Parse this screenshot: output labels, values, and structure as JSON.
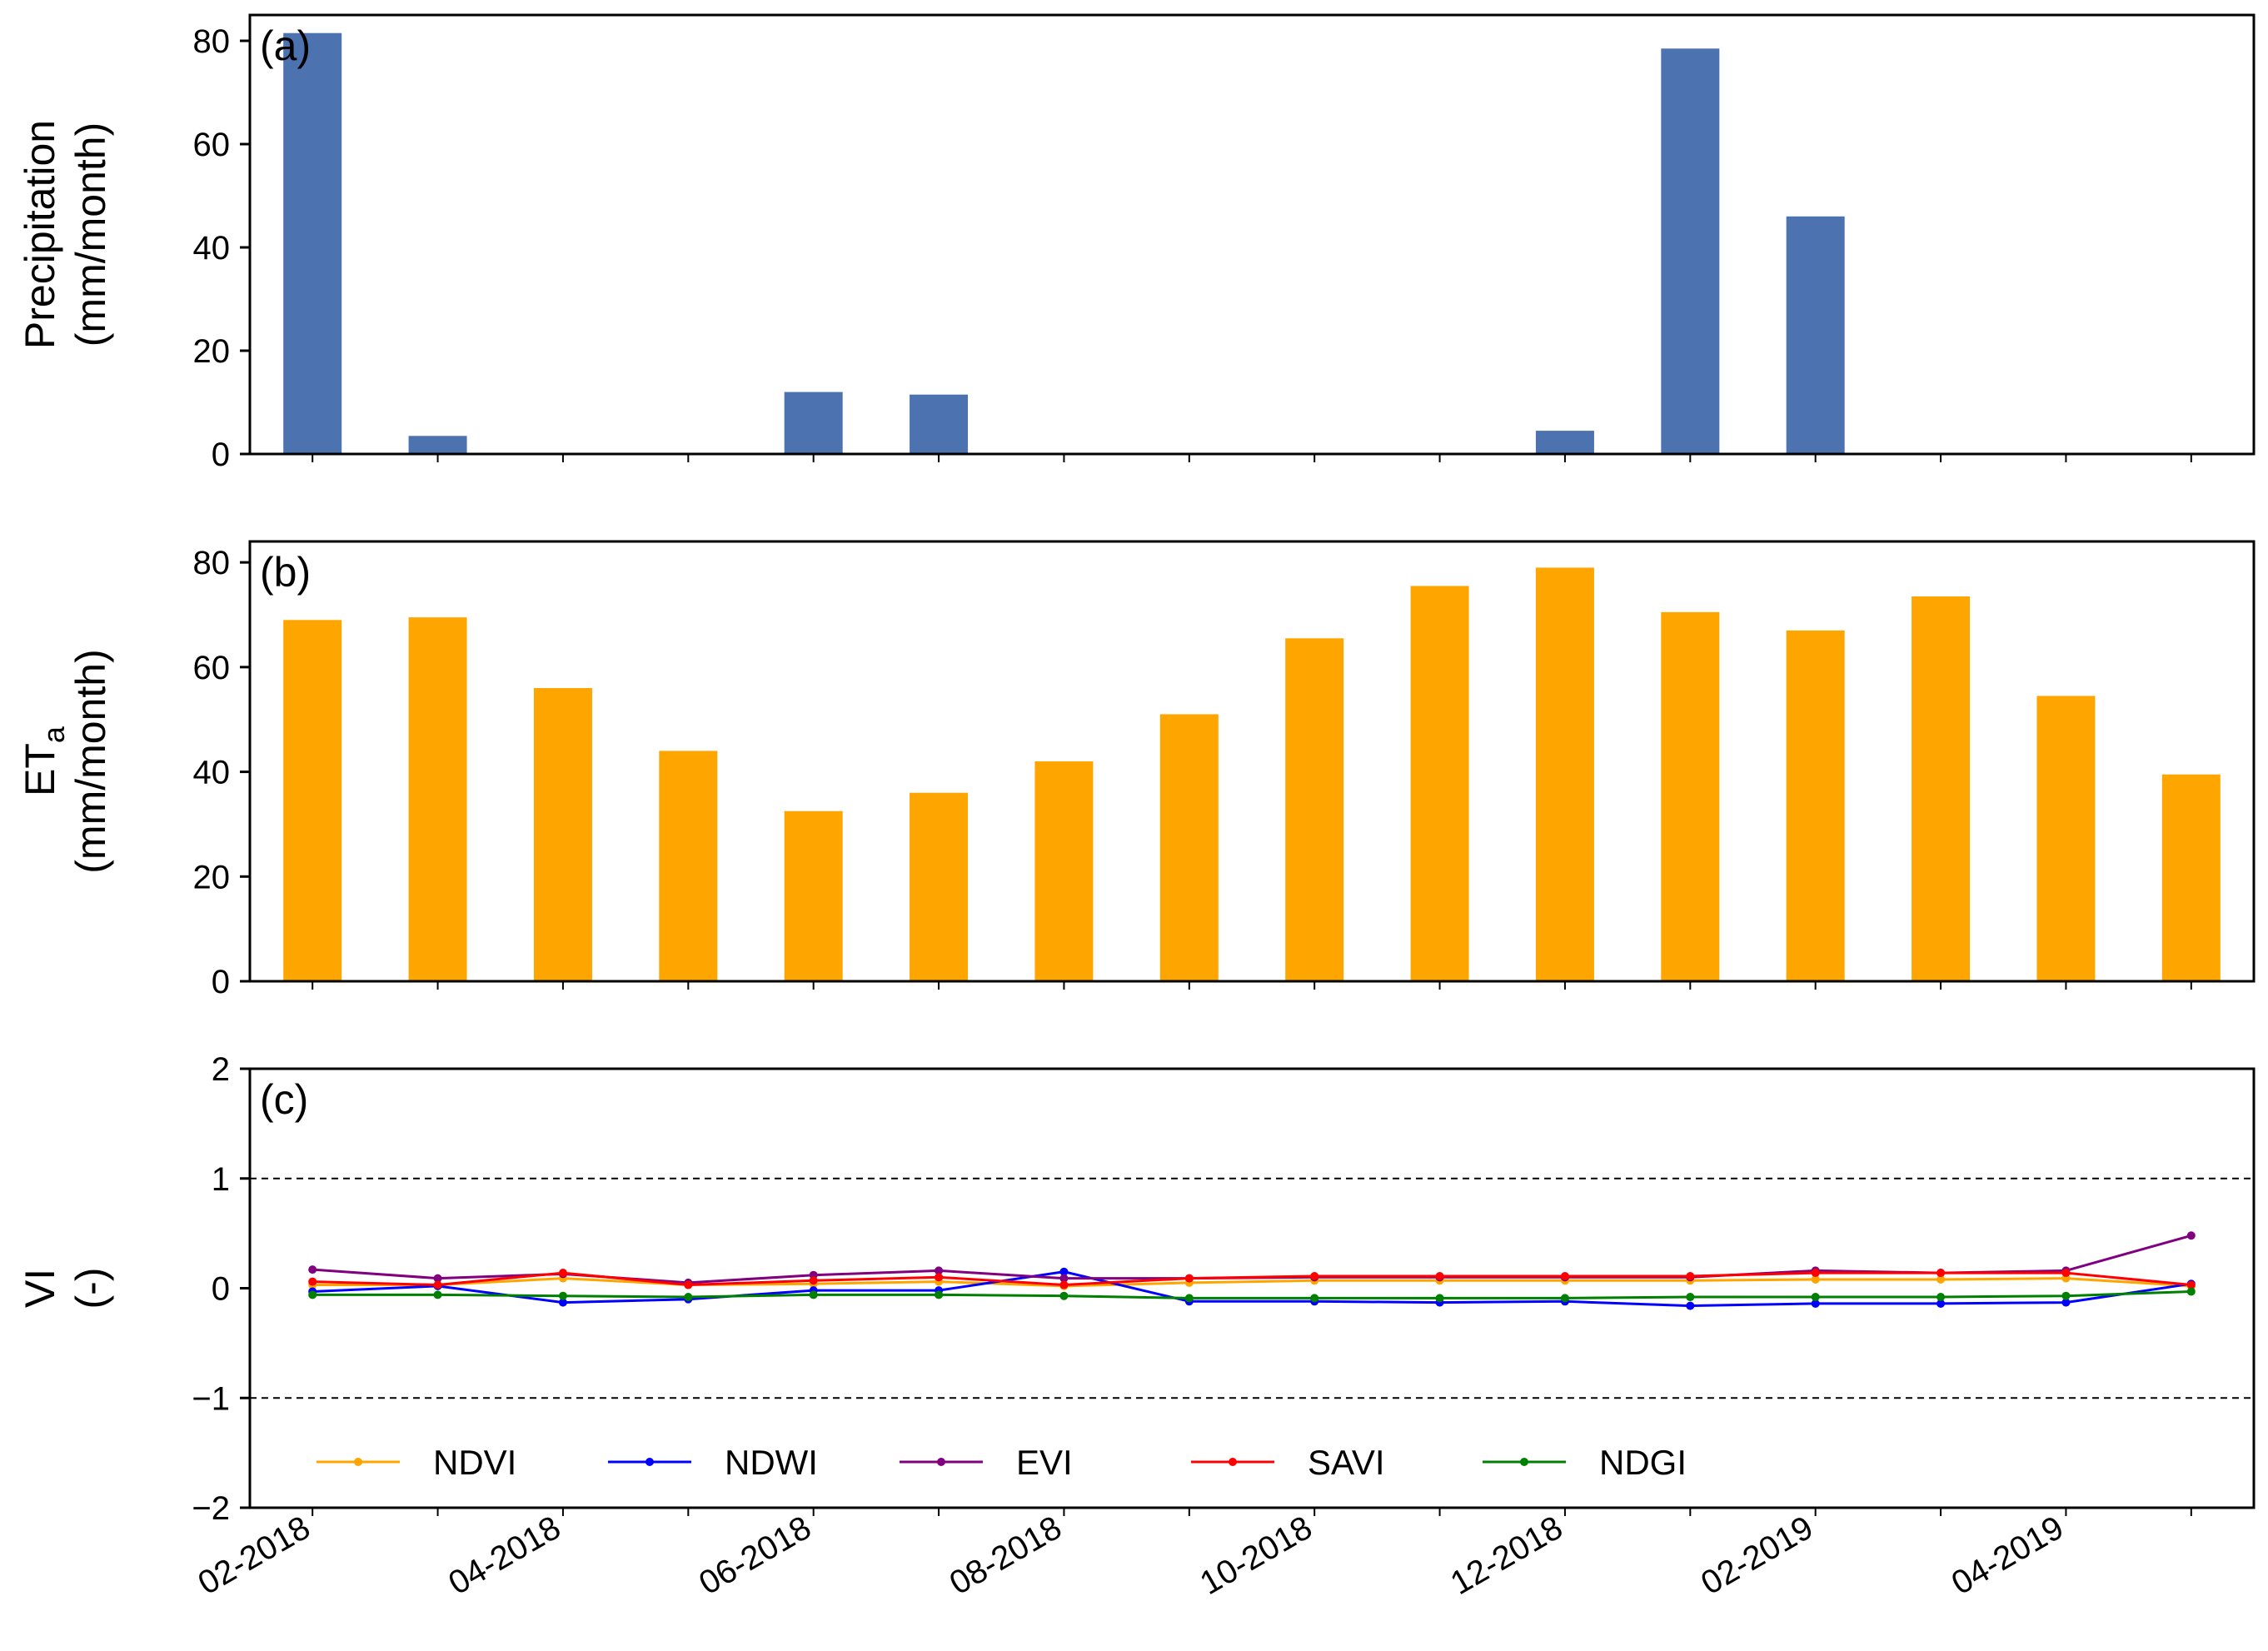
{
  "months": [
    "02-2018",
    "03-2018",
    "04-2018",
    "05-2018",
    "06-2018",
    "07-2018",
    "08-2018",
    "09-2018",
    "10-2018",
    "11-2018",
    "12-2018",
    "01-2019",
    "02-2019",
    "03-2019",
    "04-2019",
    "05-2019"
  ],
  "x_tick_labels": [
    "02-2018",
    "04-2018",
    "06-2018",
    "08-2018",
    "10-2018",
    "12-2018",
    "02-2019",
    "04-2019"
  ],
  "chart_data": [
    {
      "id": "a",
      "type": "bar",
      "panel_label": "(a)",
      "ylabel_line1": "Precipitation",
      "ylabel_line2": "(mm/month)",
      "ylim": [
        0,
        85
      ],
      "yticks": [
        0,
        20,
        40,
        60,
        80
      ],
      "color": "#4c72b0",
      "values": [
        81.5,
        3.5,
        0,
        0.2,
        12,
        11.5,
        0,
        0,
        0,
        0,
        4.5,
        78.5,
        46,
        0,
        0.2,
        0
      ]
    },
    {
      "id": "b",
      "type": "bar",
      "panel_label": "(b)",
      "ylabel_main": "ET",
      "ylabel_sub": "a",
      "ylabel_line2": "(mm/month)",
      "ylim": [
        0,
        84
      ],
      "yticks": [
        0,
        20,
        40,
        60,
        80
      ],
      "color": "#ffa500",
      "values": [
        69,
        69.5,
        56,
        44,
        32.5,
        36,
        42,
        51,
        65.5,
        75.5,
        79,
        70.5,
        67,
        73.5,
        54.5,
        39.5
      ]
    },
    {
      "id": "c",
      "type": "line",
      "panel_label": "(c)",
      "ylabel_line1": "VI",
      "ylabel_line2": "(-)",
      "ylim": [
        -2,
        2
      ],
      "yticks": [
        -2,
        -1,
        0,
        1,
        2
      ],
      "reference_lines": [
        1,
        -1
      ],
      "series": [
        {
          "name": "NDVI",
          "color": "#ffa500",
          "values": [
            0.03,
            0.03,
            0.09,
            0.03,
            0.04,
            0.06,
            0.02,
            0.05,
            0.07,
            0.07,
            0.07,
            0.07,
            0.08,
            0.08,
            0.09,
            0.02
          ]
        },
        {
          "name": "NDWI",
          "color": "#0000ff",
          "values": [
            -0.03,
            0.02,
            -0.13,
            -0.1,
            -0.02,
            -0.02,
            0.15,
            -0.12,
            -0.12,
            -0.13,
            -0.12,
            -0.16,
            -0.14,
            -0.14,
            -0.13,
            0.04
          ]
        },
        {
          "name": "EVI",
          "color": "#800080",
          "values": [
            0.17,
            0.09,
            0.13,
            0.05,
            0.12,
            0.16,
            0.09,
            0.09,
            0.1,
            0.1,
            0.1,
            0.1,
            0.16,
            0.14,
            0.16,
            0.48
          ]
        },
        {
          "name": "SAVI",
          "color": "#ff0000",
          "values": [
            0.06,
            0.03,
            0.14,
            0.03,
            0.07,
            0.1,
            0.03,
            0.09,
            0.11,
            0.11,
            0.11,
            0.11,
            0.14,
            0.14,
            0.14,
            0.03
          ]
        },
        {
          "name": "NDGI",
          "color": "#008000",
          "values": [
            -0.06,
            -0.06,
            -0.07,
            -0.08,
            -0.06,
            -0.06,
            -0.07,
            -0.09,
            -0.09,
            -0.09,
            -0.09,
            -0.08,
            -0.08,
            -0.08,
            -0.07,
            -0.03
          ]
        }
      ]
    }
  ]
}
